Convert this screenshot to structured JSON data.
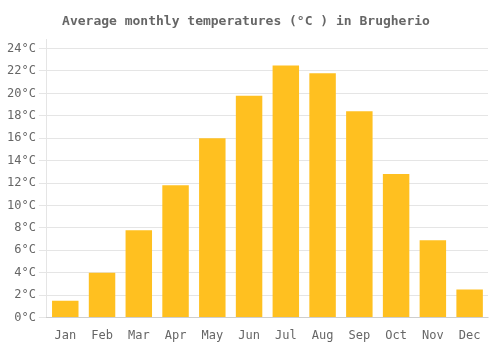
{
  "chart_data": {
    "type": "bar",
    "title": "Average monthly temperatures (°C ) in Brugherio",
    "categories": [
      "Jan",
      "Feb",
      "Mar",
      "Apr",
      "May",
      "Jun",
      "Jul",
      "Aug",
      "Sep",
      "Oct",
      "Nov",
      "Dec"
    ],
    "values": [
      1.5,
      4.0,
      7.8,
      11.8,
      16.0,
      19.8,
      22.5,
      21.8,
      18.4,
      12.8,
      6.9,
      2.5
    ],
    "color": "#FFC020",
    "ylim": [
      0,
      24.8
    ],
    "yticks": [
      {
        "value": 0,
        "label": "0°C"
      },
      {
        "value": 2,
        "label": "2°C"
      },
      {
        "value": 4,
        "label": "4°C"
      },
      {
        "value": 6,
        "label": "6°C"
      },
      {
        "value": 8,
        "label": "8°C"
      },
      {
        "value": 10,
        "label": "10°C"
      },
      {
        "value": 12,
        "label": "12°C"
      },
      {
        "value": 14,
        "label": "14°C"
      },
      {
        "value": 16,
        "label": "16°C"
      },
      {
        "value": 18,
        "label": "18°C"
      },
      {
        "value": 20,
        "label": "20°C"
      },
      {
        "value": 22,
        "label": "22°C"
      },
      {
        "value": 24,
        "label": "24°C"
      }
    ],
    "grid": true
  }
}
